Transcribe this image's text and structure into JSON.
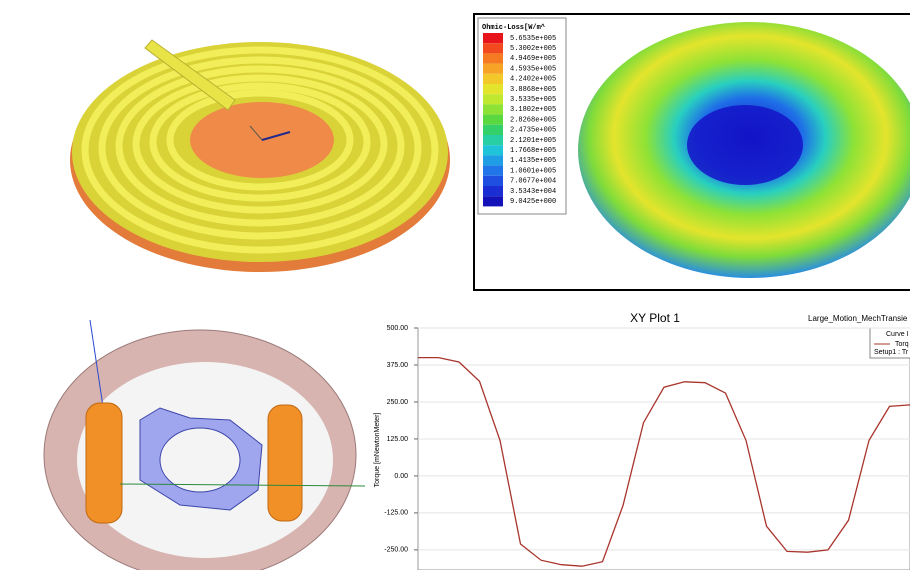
{
  "loss_legend": {
    "title": "Ohmic-Loss[W/m^",
    "entries": [
      "5.6535e+005",
      "5.3002e+005",
      "4.9469e+005",
      "4.5935e+005",
      "4.2402e+005",
      "3.8868e+005",
      "3.5335e+005",
      "3.1802e+005",
      "2.8268e+005",
      "2.4735e+005",
      "2.1201e+005",
      "1.7668e+005",
      "1.4135e+005",
      "1.0601e+005",
      "7.0677e+004",
      "3.5343e+004",
      "9.0425e+000"
    ],
    "colors": [
      "#e8141c",
      "#f24a1e",
      "#f57a22",
      "#f6a326",
      "#f2c82a",
      "#e4e42c",
      "#bfe82e",
      "#8ee236",
      "#5ad840",
      "#34d06a",
      "#28cfa4",
      "#20c4d8",
      "#1f9ee6",
      "#2076e8",
      "#1f4fe0",
      "#1a2ed4",
      "#1212b8"
    ]
  },
  "plot": {
    "type": "line",
    "title": "XY Plot 1",
    "subtitle": "Large_Motion_MechTransie",
    "ylabel": "Torque [mNewtonMeter]",
    "legend": [
      "Curve I",
      "Torq",
      "Setup1 : Tr"
    ],
    "ylim": [
      -318,
      500
    ],
    "yticks": [
      {
        "value": 500,
        "label": "500.00"
      },
      {
        "value": 375,
        "label": "375.00"
      },
      {
        "value": 250,
        "label": "250.00"
      },
      {
        "value": 125,
        "label": "125.00"
      },
      {
        "value": 0,
        "label": "0.00"
      },
      {
        "value": -125,
        "label": "-125.00"
      },
      {
        "value": -250,
        "label": "-250.00"
      }
    ],
    "grid": true,
    "series": [
      {
        "name": "Torq",
        "color": "#a8342c",
        "values": [
          400,
          400,
          385,
          320,
          120,
          -230,
          -285,
          -300,
          -305,
          -290,
          -100,
          180,
          300,
          318,
          315,
          280,
          120,
          -170,
          -255,
          -258,
          -250,
          -150,
          120,
          235,
          240
        ]
      }
    ]
  }
}
